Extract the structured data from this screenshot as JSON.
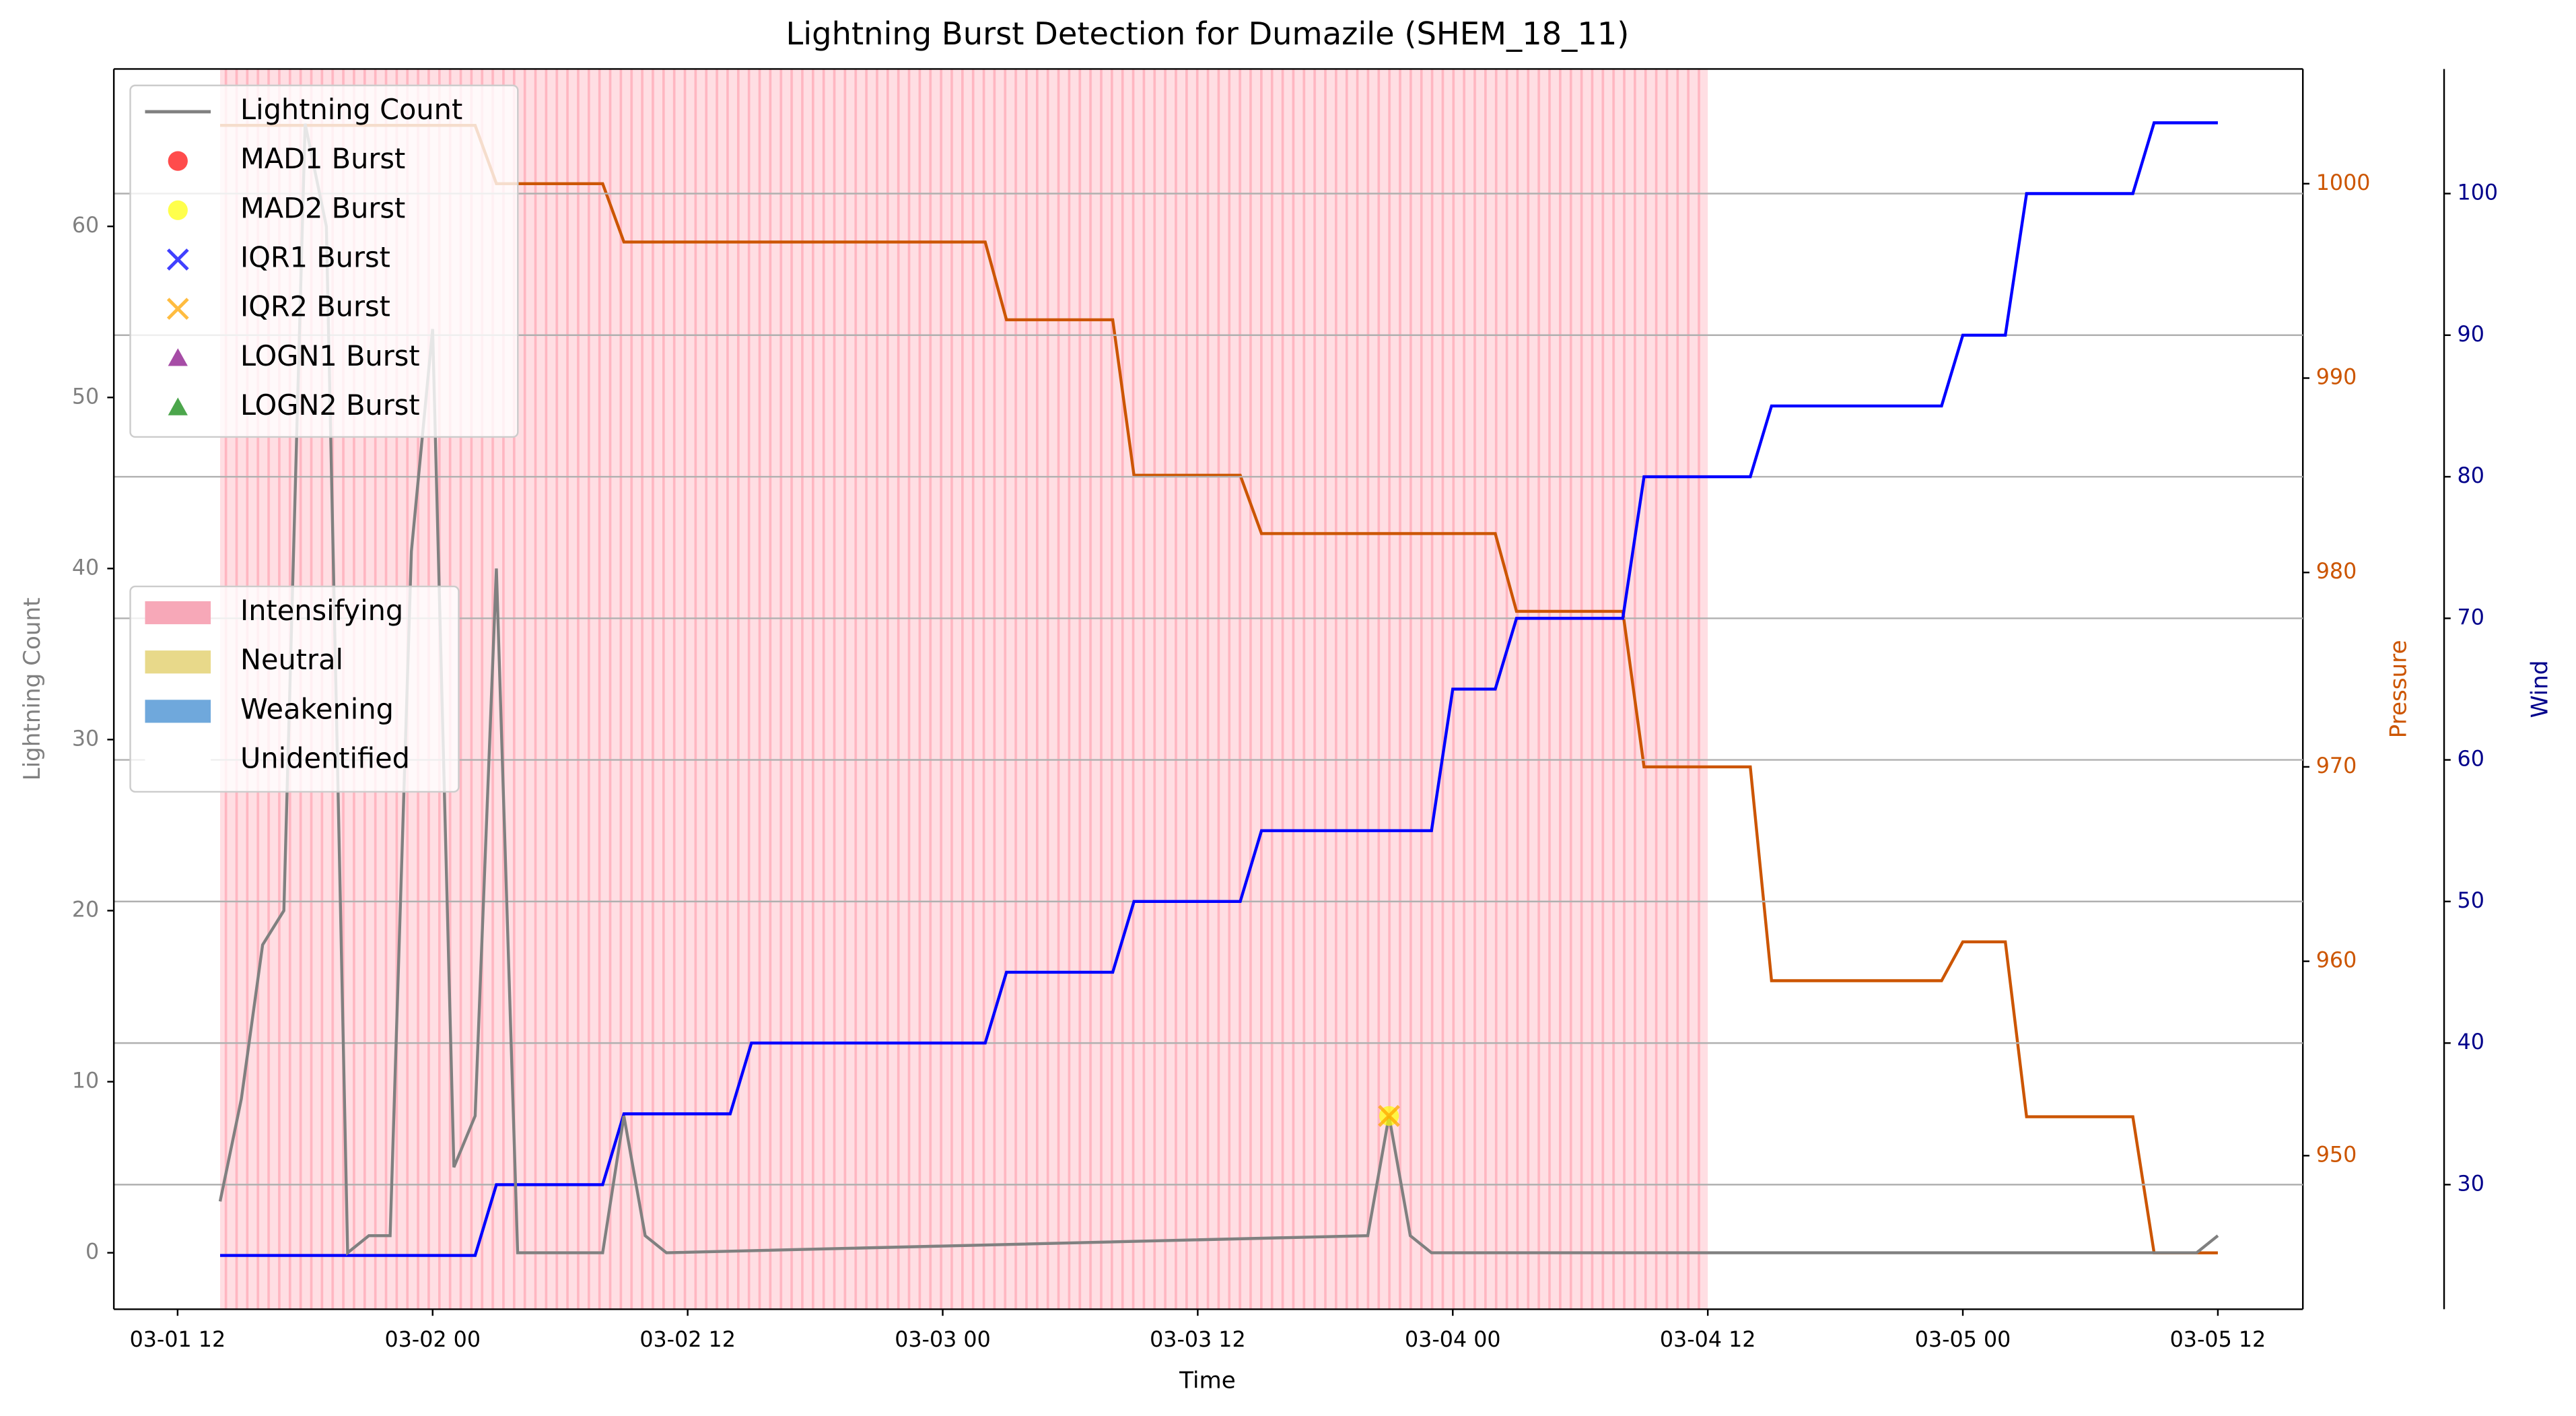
{
  "chart_data": {
    "type": "line",
    "title": "Lightning Burst Detection for Dumazile (SHEM_18_11)",
    "x_label": "Time",
    "y_label": "Lightning Count",
    "xlim": [
      "03-01 09",
      "03-05 16"
    ],
    "xticks": [
      "03-01 12",
      "03-02 00",
      "03-02 12",
      "03-03 00",
      "03-03 12",
      "03-04 00",
      "03-04 12",
      "03-05 00",
      "03-05 12"
    ],
    "ylim": [
      -3.3,
      69.2
    ],
    "yticks": [
      0,
      10,
      20,
      30,
      40,
      50,
      60
    ],
    "label_color": "#808080",
    "legend": "upper left",
    "series": [
      {
        "name": "Lightning Count",
        "color": "#808080",
        "marker": "line",
        "x": [
          "03-01 14",
          "03-01 15",
          "03-01 16",
          "03-01 17",
          "03-01 18",
          "03-01 19",
          "03-01 20",
          "03-01 21",
          "03-01 22",
          "03-01 23",
          "03-02 00",
          "03-02 01",
          "03-02 02",
          "03-02 03",
          "03-02 04",
          "03-02 08",
          "03-02 09",
          "03-02 10",
          "03-02 11",
          "03-03 20",
          "03-03 21",
          "03-03 22",
          "03-03 23",
          "03-05 11",
          "03-05 12"
        ],
        "values": [
          3,
          9,
          18,
          20,
          66,
          60,
          0,
          1,
          1,
          41,
          54,
          5,
          8,
          40,
          0,
          0,
          8,
          1,
          0,
          1,
          8,
          1,
          0,
          0,
          1
        ]
      },
      {
        "name": "MAD1 Burst",
        "color": "#ff0000",
        "marker": "o",
        "x": [],
        "values": []
      },
      {
        "name": "MAD2 Burst",
        "color": "#ffff00",
        "marker": "o",
        "x": [
          "03-03 21"
        ],
        "values": [
          8
        ]
      },
      {
        "name": "IQR1 Burst",
        "color": "#0000ff",
        "marker": "x",
        "x": [],
        "values": []
      },
      {
        "name": "IQR2 Burst",
        "color": "#ffa500",
        "marker": "x",
        "x": [
          "03-03 21"
        ],
        "values": [
          8
        ]
      },
      {
        "name": "LOGN1 Burst",
        "color": "#800080",
        "marker": "^",
        "x": [],
        "values": []
      },
      {
        "name": "LOGN2 Burst",
        "color": "#008000",
        "marker": "^",
        "x": [],
        "values": []
      }
    ],
    "secondary_axes": [
      {
        "name": "Pressure",
        "color": "#cc5500",
        "offset": 0,
        "grid": false,
        "ylim": [
          942.1,
          1005.9
        ],
        "yticks": [
          950,
          960,
          970,
          980,
          990,
          1000
        ],
        "x": [
          "03-01 14",
          "03-02 02",
          "03-02 03",
          "03-02 08",
          "03-02 09",
          "03-03 02",
          "03-03 03",
          "03-03 08",
          "03-03 09",
          "03-03 14",
          "03-03 15",
          "03-04 02",
          "03-04 03",
          "03-04 08",
          "03-04 09",
          "03-04 14",
          "03-04 15",
          "03-04 23",
          "03-05 00",
          "03-05 02",
          "03-05 03",
          "03-05 08",
          "03-05 09",
          "03-05 12"
        ],
        "values": [
          1003,
          1003,
          1000,
          1000,
          997,
          997,
          993,
          993,
          985,
          985,
          982,
          982,
          978,
          978,
          970,
          970,
          959,
          959,
          961,
          961,
          952,
          952,
          945,
          945
        ]
      },
      {
        "name": "Wind",
        "color": "#0000ff",
        "tick_color": "#00008b",
        "offset": 86,
        "grid": true,
        "ylim": [
          21.2,
          108.8
        ],
        "yticks": [
          30,
          40,
          50,
          60,
          70,
          80,
          90,
          100
        ],
        "x": [
          "03-01 14",
          "03-02 02",
          "03-02 03",
          "03-02 08",
          "03-02 09",
          "03-02 14",
          "03-02 15",
          "03-03 02",
          "03-03 03",
          "03-03 08",
          "03-03 09",
          "03-03 14",
          "03-03 15",
          "03-03 23",
          "03-04 00",
          "03-04 02",
          "03-04 03",
          "03-04 08",
          "03-04 09",
          "03-04 14",
          "03-04 15",
          "03-04 23",
          "03-05 00",
          "03-05 02",
          "03-05 03",
          "03-05 08",
          "03-05 09",
          "03-05 12"
        ],
        "values": [
          25,
          25,
          30,
          30,
          35,
          35,
          40,
          40,
          45,
          45,
          50,
          50,
          55,
          55,
          65,
          65,
          70,
          70,
          80,
          80,
          85,
          85,
          90,
          90,
          100,
          100,
          105,
          105
        ]
      }
    ],
    "phases": [
      {
        "name": "Intensifying",
        "color": "#f7a8b8"
      },
      {
        "name": "Neutral",
        "color": "#e8d98a"
      },
      {
        "name": "Weakening",
        "color": "#6fa8dc"
      },
      {
        "name": "Unidentified",
        "color": "#ffffff"
      }
    ],
    "spans": [
      {
        "start": "03-01 14",
        "end": "03-04 12",
        "color": "#ffb6c1"
      }
    ]
  }
}
